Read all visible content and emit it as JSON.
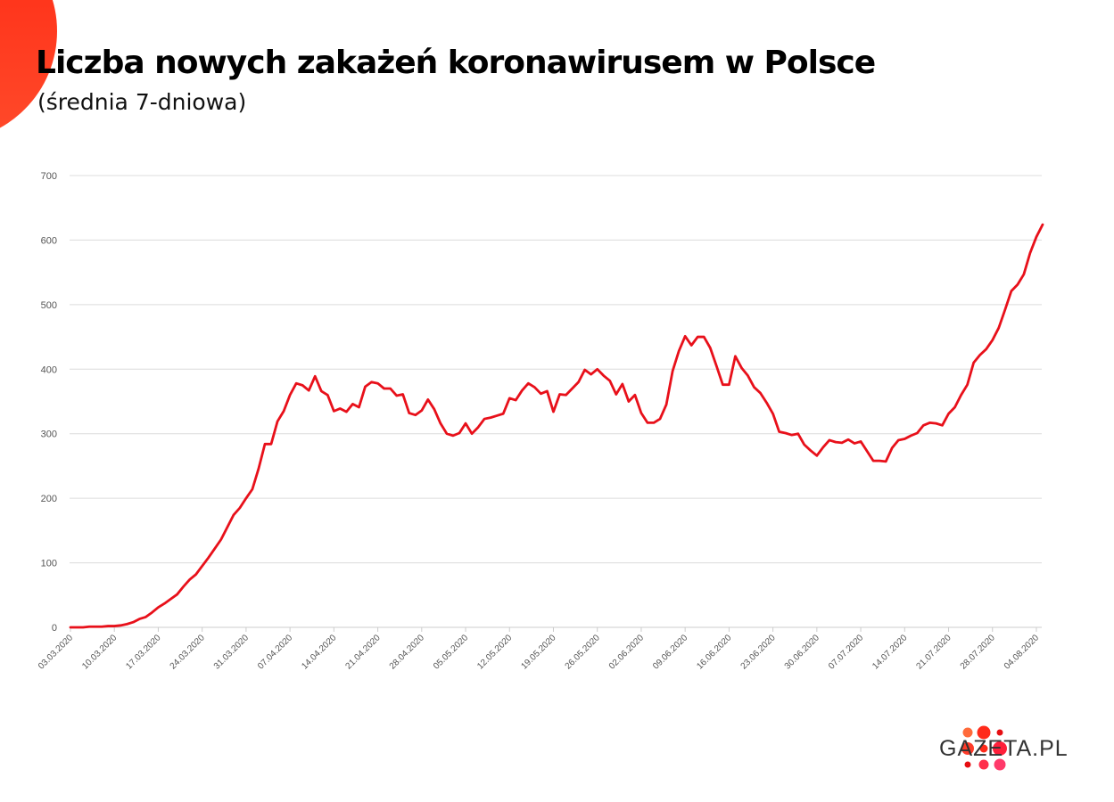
{
  "colors": {
    "line": "#e8101a",
    "grid": "#dcdcdc",
    "axis": "#cccccc",
    "tick_text": "#555555",
    "corner": "#ff3c1f",
    "logo_dots": [
      "#ff5a36",
      "#ff2a1a",
      "#e60e12",
      "#ff3c2a",
      "#ff1f3a",
      "#ff2e5a"
    ]
  },
  "chart_data": {
    "type": "line",
    "title": "Liczba nowych zakażeń koronawirusem w Polsce",
    "subtitle": "(średnia 7-dniowa)",
    "xlabel": "",
    "ylabel": "",
    "ylim": [
      0,
      700
    ],
    "yticks": [
      0,
      100,
      200,
      300,
      400,
      500,
      600,
      700
    ],
    "grid": true,
    "legend": "none",
    "start_date": "03.03.2020",
    "xtick_labels": [
      "03.03.2020",
      "10.03.2020",
      "17.03.2020",
      "24.03.2020",
      "31.03.2020",
      "07.04.2020",
      "14.04.2020",
      "21.04.2020",
      "28.04.2020",
      "05.05.2020",
      "12.05.2020",
      "19.05.2020",
      "26.05.2020",
      "02.06.2020",
      "09.06.2020",
      "16.06.2020",
      "23.06.2020",
      "30.06.2020",
      "07.07.2020",
      "14.07.2020",
      "21.07.2020",
      "28.07.2020",
      "04.08.2020"
    ],
    "values": [
      0,
      0,
      0,
      1,
      1,
      1,
      2,
      2,
      3,
      5,
      8,
      13,
      16,
      23,
      31,
      37,
      44,
      51,
      63,
      74,
      82,
      95,
      108,
      122,
      136,
      155,
      174,
      185,
      200,
      214,
      246,
      284,
      284,
      319,
      335,
      360,
      378,
      375,
      367,
      389,
      366,
      360,
      335,
      339,
      334,
      346,
      341,
      373,
      380,
      378,
      370,
      370,
      359,
      361,
      332,
      329,
      336,
      353,
      338,
      316,
      300,
      297,
      301,
      316,
      300,
      310,
      323,
      325,
      328,
      331,
      355,
      352,
      367,
      378,
      372,
      362,
      366,
      334,
      361,
      360,
      370,
      380,
      399,
      392,
      400,
      390,
      382,
      361,
      377,
      350,
      360,
      332,
      317,
      317,
      323,
      345,
      397,
      428,
      451,
      437,
      450,
      450,
      433,
      405,
      376,
      376,
      420,
      402,
      390,
      372,
      363,
      348,
      331,
      303,
      301,
      298,
      300,
      283,
      274,
      266,
      279,
      290,
      287,
      286,
      291,
      285,
      288,
      273,
      258,
      258,
      257,
      278,
      290,
      292,
      297,
      301,
      313,
      317,
      316,
      313,
      331,
      341,
      360,
      376,
      410,
      422,
      431,
      445,
      464,
      492,
      521,
      531,
      547,
      580,
      605,
      624
    ]
  },
  "logo": {
    "text": "GAZETA.PL"
  }
}
